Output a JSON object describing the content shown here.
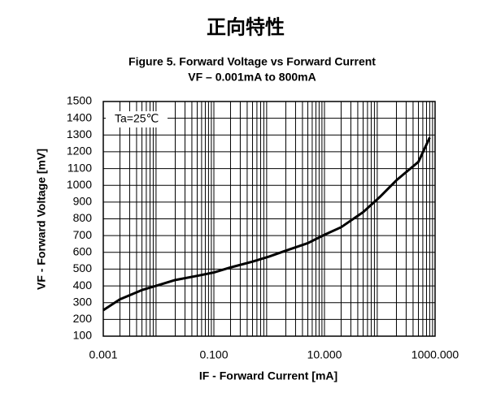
{
  "heading": "正向特性",
  "chart_data": {
    "type": "line",
    "title": "Figure 5. Forward Voltage vs Forward Current",
    "subtitle": "VF – 0.001mA to 800mA",
    "x_label": "IF - Forward Current [mA]",
    "y_label": "VF - Forward Voltage [mV]",
    "annotation": "Ta=25℃",
    "x": [
      0.001,
      0.002,
      0.005,
      0.01,
      0.02,
      0.05,
      0.1,
      0.2,
      0.5,
      1,
      2,
      5,
      10,
      20,
      50,
      100,
      200,
      500,
      800
    ],
    "series": [
      {
        "name": "VF",
        "color": "#000000",
        "values": [
          255,
          320,
          375,
          405,
          435,
          460,
          480,
          510,
          545,
          575,
          610,
          655,
          705,
          750,
          840,
          930,
          1030,
          1140,
          1285
        ]
      }
    ],
    "xscale": "log",
    "xlim": [
      0.001,
      1000
    ],
    "xticks": [
      0.001,
      {
        "value": 0.1,
        "label": "0.100"
      },
      {
        "value": 10,
        "label": "10.000"
      },
      {
        "value": 1000,
        "label": "1000.000"
      }
    ],
    "ylim": [
      100,
      1500
    ],
    "yticks": [
      100,
      200,
      300,
      400,
      500,
      600,
      700,
      800,
      900,
      1000,
      1100,
      1200,
      1300,
      1400,
      1500
    ],
    "grid": true,
    "minor_grid": true
  }
}
